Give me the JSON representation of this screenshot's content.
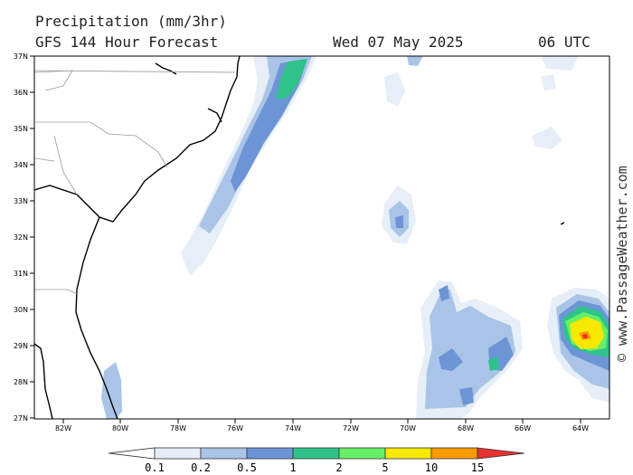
{
  "header": {
    "title": "Precipitation (mm/3hr)",
    "model": "GFS 144 Hour Forecast",
    "date": "Wed 07 May 2025",
    "time": "06 UTC"
  },
  "credit": "© www.PassageWeather.com",
  "map": {
    "lat_labels": [
      "37N",
      "36N",
      "35N",
      "34N",
      "33N",
      "32N",
      "31N",
      "30N",
      "29N",
      "28N",
      "27N"
    ],
    "lon_labels": [
      "82W",
      "80W",
      "78W",
      "76W",
      "74W",
      "72W",
      "70W",
      "68W",
      "66W",
      "64W"
    ],
    "lat_range": [
      27,
      37
    ],
    "lon_range": [
      -83,
      -63
    ],
    "land_color": "#ffffff",
    "sea_color": "#ffffff"
  },
  "legend": {
    "thresholds": [
      "0.1",
      "0.2",
      "0.5",
      "1",
      "2",
      "5",
      "10",
      "15"
    ],
    "colors": [
      "#ffffff",
      "#e6eef8",
      "#a9c4e6",
      "#6d95d6",
      "#2fc28a",
      "#66f066",
      "#f7e800",
      "#f89b00",
      "#e83030"
    ]
  }
}
